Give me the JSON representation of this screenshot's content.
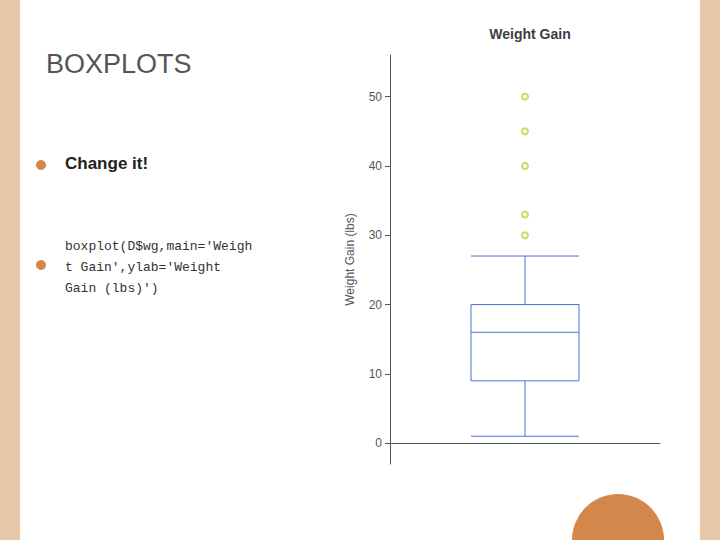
{
  "chart_data": {
    "type": "boxplot",
    "title": "Weight Gain",
    "ylabel": "Weight Gain (lbs)",
    "annotations": [
      "BOXPLOTS",
      "Change it!",
      "boxplot(D$wg,main='Weigh",
      "t Gain',ylab='Weight",
      "Gain (lbs)')"
    ],
    "categories": [
      null
    ],
    "values": [
      [
        1,
        9,
        16,
        20,
        27
      ]
    ],
    "outliers": [
      30,
      33,
      40,
      45,
      50
    ],
    "ylim": [
      -3,
      56
    ],
    "yticks": [
      0,
      10,
      20,
      30,
      40,
      50
    ],
    "grid": false,
    "tick_labels": "y"
  }
}
